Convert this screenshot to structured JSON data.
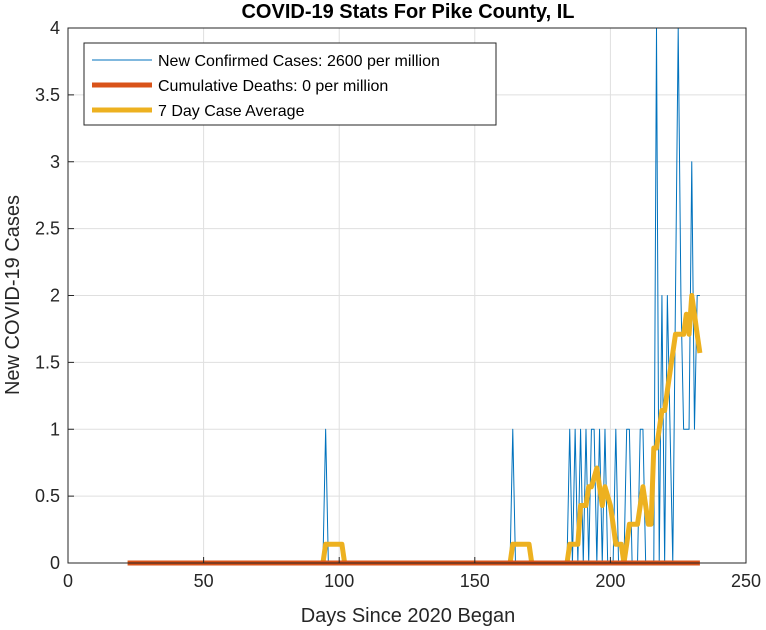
{
  "chart_data": {
    "type": "line",
    "title": "COVID-19 Stats For Pike County, IL",
    "xlabel": "Days Since 2020 Began",
    "ylabel": "New COVID-19 Cases",
    "xlim": [
      0,
      250
    ],
    "ylim": [
      0,
      4
    ],
    "x_ticks": [
      "0",
      "50",
      "100",
      "150",
      "200",
      "250"
    ],
    "y_ticks": [
      "0",
      "0.5",
      "1",
      "1.5",
      "2",
      "2.5",
      "3",
      "3.5",
      "4"
    ],
    "grid": true,
    "legend_position": "top-left",
    "series": [
      {
        "name": "New Confirmed Cases: 2600 per million",
        "color": "#0072BD",
        "x": [
          22,
          94,
          95,
          96,
          163,
          164,
          165,
          184,
          185,
          186,
          187,
          188,
          189,
          190,
          191,
          192,
          193,
          194,
          195,
          196,
          197,
          198,
          199,
          200,
          201,
          202,
          203,
          204,
          205,
          206,
          207,
          208,
          209,
          210,
          211,
          212,
          213,
          214,
          215,
          216,
          217,
          218,
          219,
          220,
          221,
          222,
          223,
          224,
          225,
          226,
          227,
          228,
          229,
          230,
          231,
          232,
          233
        ],
        "y": [
          0,
          0,
          1,
          0,
          0,
          1,
          0,
          0,
          1,
          0,
          1,
          0,
          1,
          0,
          1,
          0,
          1,
          1,
          0,
          1,
          0,
          1,
          0,
          0,
          0,
          1,
          0,
          0,
          0,
          1,
          1,
          0,
          0,
          0,
          1,
          1,
          0,
          0,
          0,
          0,
          4,
          0,
          2,
          0,
          2,
          1,
          0,
          2,
          4,
          2,
          1,
          1,
          1,
          3,
          1,
          2,
          2
        ]
      },
      {
        "name": "Cumulative Deaths: 0 per million",
        "color": "#D95319",
        "x": [
          22,
          233
        ],
        "y": [
          0,
          0
        ]
      },
      {
        "name": "7 Day Case Average",
        "color": "#EDB120",
        "x": [
          22,
          94,
          95,
          96,
          101,
          102,
          163,
          164,
          165,
          170,
          171,
          184,
          185,
          188,
          189,
          191,
          192,
          193,
          195,
          196,
          197,
          198,
          200,
          201,
          202,
          203,
          204,
          205,
          206,
          207,
          208,
          209,
          210,
          211,
          212,
          213,
          214,
          215,
          216,
          217,
          218,
          219,
          220,
          221,
          222,
          223,
          224,
          225,
          226,
          227,
          228,
          229,
          230,
          231,
          232,
          233
        ],
        "y": [
          0,
          0,
          0.14,
          0.14,
          0.14,
          0,
          0,
          0.14,
          0.14,
          0.14,
          0,
          0,
          0.14,
          0.14,
          0.43,
          0.43,
          0.57,
          0.57,
          0.71,
          0.57,
          0.43,
          0.57,
          0.43,
          0.29,
          0.14,
          0.14,
          0.14,
          0,
          0.14,
          0.29,
          0.29,
          0.29,
          0.29,
          0.43,
          0.57,
          0.43,
          0.29,
          0.29,
          0.86,
          0.86,
          1.0,
          1.14,
          1.14,
          1.29,
          1.43,
          1.57,
          1.71,
          1.71,
          1.71,
          1.71,
          1.86,
          1.71,
          2.0,
          1.86,
          1.71,
          1.57
        ]
      }
    ]
  }
}
